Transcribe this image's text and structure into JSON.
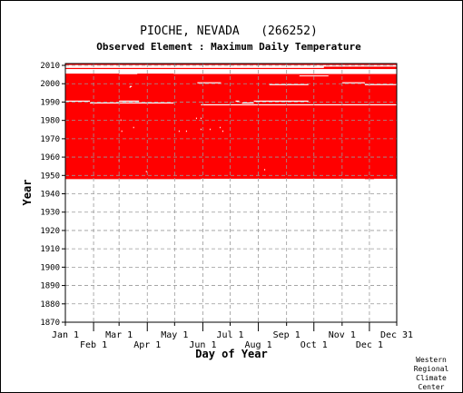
{
  "chart_data": {
    "type": "heatmap",
    "title": "PIOCHE, NEVADA   (266252)",
    "subtitle": "Observed Element : Maximum Daily Temperature",
    "xlabel": "Day of Year",
    "ylabel": "Year",
    "credit": [
      "Western",
      "Regional",
      "Climate",
      "Center"
    ],
    "x_axis": {
      "range_day_of_year": [
        1,
        365
      ],
      "ticks_top_row": [
        {
          "label": "Jan 1",
          "day": 1
        },
        {
          "label": "Mar 1",
          "day": 60
        },
        {
          "label": "May 1",
          "day": 121
        },
        {
          "label": "Jul 1",
          "day": 182
        },
        {
          "label": "Sep 1",
          "day": 244
        },
        {
          "label": "Nov 1",
          "day": 305
        },
        {
          "label": "Dec 31",
          "day": 365
        }
      ],
      "ticks_bottom_row": [
        {
          "label": "Feb 1",
          "day": 32
        },
        {
          "label": "Apr 1",
          "day": 91
        },
        {
          "label": "Jun 1",
          "day": 152
        },
        {
          "label": "Aug 1",
          "day": 213
        },
        {
          "label": "Oct 1",
          "day": 274
        },
        {
          "label": "Dec 1",
          "day": 335
        }
      ]
    },
    "y_axis": {
      "range": [
        1870,
        2011
      ],
      "ticks": [
        1870,
        1880,
        1890,
        1900,
        1910,
        1920,
        1930,
        1940,
        1950,
        1960,
        1970,
        1980,
        1990,
        2000,
        2010
      ]
    },
    "grid": true,
    "data_color": "#ff0000",
    "data_present_blocks": [
      {
        "year_start": 1948,
        "year_end": 2005.5,
        "day_start": 1,
        "day_end": 365
      },
      {
        "year_start": 2008,
        "year_end": 2009.3,
        "day_start": 1,
        "day_end": 365
      },
      {
        "year_start": 2010.2,
        "year_end": 2011,
        "day_start": 1,
        "day_end": 365
      }
    ],
    "data_gaps": [
      {
        "year_start": 2005.3,
        "year_end": 2006,
        "day_start": 120,
        "day_end": 365
      },
      {
        "year_start": 2008.6,
        "year_end": 2009.3,
        "day_start": 1,
        "day_end": 285
      },
      {
        "year_start": 2005.2,
        "year_end": 2005.7,
        "day_start": 60,
        "day_end": 80
      },
      {
        "year_start": 2004,
        "year_end": 2004.5,
        "day_start": 258,
        "day_end": 290
      },
      {
        "year_start": 2000.2,
        "year_end": 2000.8,
        "day_start": 146,
        "day_end": 172
      },
      {
        "year_start": 2000.2,
        "year_end": 2000.8,
        "day_start": 305,
        "day_end": 330
      },
      {
        "year_start": 1999.2,
        "year_end": 1999.8,
        "day_start": 225,
        "day_end": 268
      },
      {
        "year_start": 1999.2,
        "year_end": 1999.8,
        "day_start": 330,
        "day_end": 365
      },
      {
        "year_start": 1998.2,
        "year_end": 1998.8,
        "day_start": 72,
        "day_end": 74
      },
      {
        "year_start": 1990.2,
        "year_end": 1990.8,
        "day_start": 1,
        "day_end": 28
      },
      {
        "year_start": 1990.2,
        "year_end": 1990.8,
        "day_start": 60,
        "day_end": 82
      },
      {
        "year_start": 1990.2,
        "year_end": 1990.8,
        "day_start": 188,
        "day_end": 192
      },
      {
        "year_start": 1990.2,
        "year_end": 1990.8,
        "day_start": 208,
        "day_end": 268
      },
      {
        "year_start": 1989.2,
        "year_end": 1989.8,
        "day_start": 28,
        "day_end": 120
      },
      {
        "year_start": 1989.2,
        "year_end": 1989.8,
        "day_start": 195,
        "day_end": 208
      },
      {
        "year_start": 1988.2,
        "year_end": 1988.8,
        "day_start": 150,
        "day_end": 365
      },
      {
        "year_start": 1947.8,
        "year_end": 1948.2,
        "day_start": 150,
        "day_end": 330
      },
      {
        "year_start": 1947.8,
        "year_end": 1948.2,
        "day_start": 340,
        "day_end": 365
      }
    ],
    "scattered_missing_days": [
      {
        "year": 1998,
        "day": 72
      },
      {
        "year": 1981,
        "day": 145
      },
      {
        "year": 1981,
        "day": 150
      },
      {
        "year": 1980,
        "day": 62
      },
      {
        "year": 1976,
        "day": 76
      },
      {
        "year": 1975,
        "day": 150
      },
      {
        "year": 1975,
        "day": 160
      },
      {
        "year": 1974,
        "day": 63
      },
      {
        "year": 1974,
        "day": 126
      },
      {
        "year": 1974,
        "day": 134
      },
      {
        "year": 1976,
        "day": 171
      },
      {
        "year": 1974,
        "day": 174
      },
      {
        "year": 1958,
        "day": 60
      },
      {
        "year": 1953,
        "day": 220
      },
      {
        "year": 1952,
        "day": 90
      }
    ]
  }
}
